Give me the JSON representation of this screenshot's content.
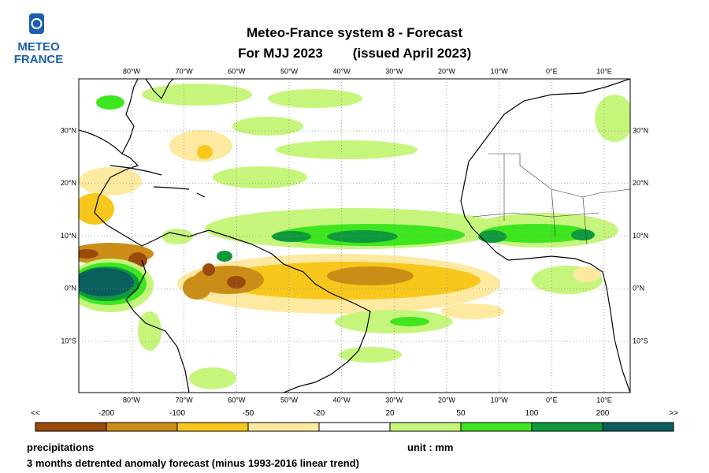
{
  "logo": {
    "line1": "METEO",
    "line2": "FRANCE"
  },
  "header": {
    "title": "Meteo-France system 8  -  Forecast",
    "subtitle_left": "For MJJ 2023",
    "subtitle_right": "(issued April 2023)"
  },
  "map": {
    "lon_labels": [
      "80°W",
      "70°W",
      "60°W",
      "50°W",
      "40°W",
      "30°W",
      "20°W",
      "10°W",
      "0°E",
      "10°E"
    ],
    "lat_labels": [
      "30°N",
      "20°N",
      "10°N",
      "0°N",
      "10°S"
    ]
  },
  "legend": {
    "left_arrow": "<<",
    "right_arrow": ">>",
    "thresholds": [
      "-200",
      "-100",
      "-50",
      "-20",
      "20",
      "50",
      "100",
      "200"
    ],
    "colors": [
      "#9b4a0c",
      "#cc8d17",
      "#f7c71c",
      "#fde9a0",
      "#ffffff",
      "#c6f57c",
      "#3de61f",
      "#0e9a3c",
      "#0a5f5c"
    ]
  },
  "footer": {
    "variable": "precipitations",
    "unit": "unit : mm",
    "description": "3 months detrented anomaly forecast (minus 1993-2016 linear trend)"
  }
}
